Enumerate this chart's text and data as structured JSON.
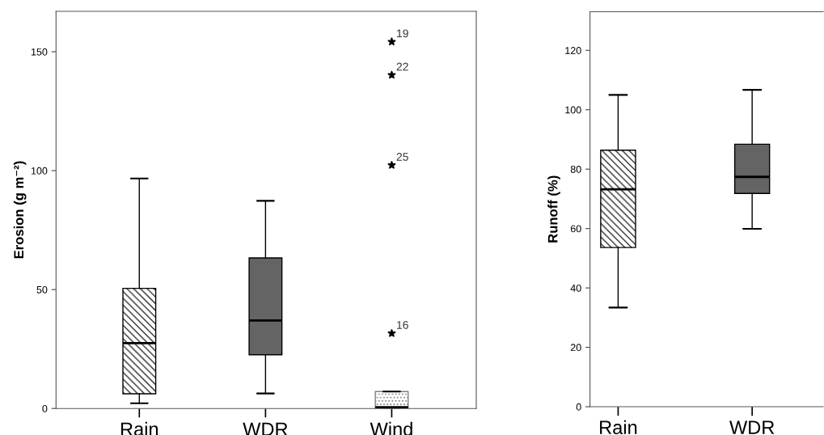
{
  "chart_data": [
    {
      "type": "box",
      "categories": [
        "Rain",
        "WDR",
        "Wind"
      ],
      "ylabel": "Erosion (g m⁻²)",
      "ylim": [
        0,
        167
      ],
      "yticks": [
        0,
        50,
        100,
        150
      ],
      "grid": false,
      "colors": [
        "#000000",
        "#646464",
        "#808080"
      ],
      "boxes": [
        {
          "low": 2.2,
          "q1": 6.2,
          "median": 27.5,
          "q3": 50.5,
          "high": 96.7
        },
        {
          "low": 6.3,
          "q1": 22.6,
          "median": 37,
          "q3": 63.3,
          "high": 87.3
        },
        {
          "low": 0,
          "q1": 0,
          "median": 0.5,
          "q3": 7.1,
          "high": 7.1,
          "outliers": [
            31.6,
            102.3,
            140.2,
            154.2
          ]
        }
      ],
      "marker": "star",
      "annotations": [
        "16",
        "25",
        "22",
        "19"
      ]
    },
    {
      "type": "box",
      "categories": [
        "Rain",
        "WDR"
      ],
      "ylabel": "Runoff (%)",
      "ylim": [
        0,
        133
      ],
      "yticks": [
        0,
        20,
        40,
        60,
        80,
        100,
        120
      ],
      "grid": false,
      "colors": [
        "#000000",
        "#646464"
      ],
      "boxes": [
        {
          "low": 33.4,
          "q1": 53.6,
          "median": 73.2,
          "q3": 86.4,
          "high": 105.0
        },
        {
          "low": 59.9,
          "q1": 71.8,
          "median": 77.4,
          "q3": 88.4,
          "high": 106.7
        }
      ]
    }
  ]
}
